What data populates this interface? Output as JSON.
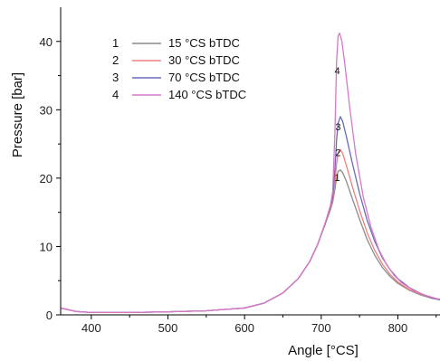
{
  "chart_data": {
    "type": "line",
    "title": "",
    "xlabel": "Angle [°CS]",
    "ylabel": "Pressure [bar]",
    "xlim": [
      360,
      855
    ],
    "ylim": [
      0,
      45
    ],
    "xticks": [
      400,
      500,
      600,
      700,
      800
    ],
    "yticks": [
      0,
      10,
      20,
      30,
      40
    ],
    "grid": false,
    "legend_placement": "top-left",
    "series": [
      {
        "legend_index": "1",
        "name": "15 °CS bTDC",
        "curve_label": "4",
        "color": "#8a8a8a",
        "points": [
          [
            360,
            1.0
          ],
          [
            380,
            0.5
          ],
          [
            400,
            0.35
          ],
          [
            450,
            0.35
          ],
          [
            500,
            0.45
          ],
          [
            550,
            0.6
          ],
          [
            600,
            1.0
          ],
          [
            625,
            1.7
          ],
          [
            650,
            3.2
          ],
          [
            670,
            5.3
          ],
          [
            685,
            7.8
          ],
          [
            695,
            10.2
          ],
          [
            705,
            13.2
          ],
          [
            712,
            15.4
          ],
          [
            715,
            16.5
          ],
          [
            718,
            18.5
          ],
          [
            720,
            20.0
          ],
          [
            722,
            21.0
          ],
          [
            725,
            21.2
          ],
          [
            728,
            20.8
          ],
          [
            733,
            19.5
          ],
          [
            740,
            17.2
          ],
          [
            750,
            14.0
          ],
          [
            760,
            11.0
          ],
          [
            770,
            8.7
          ],
          [
            780,
            6.9
          ],
          [
            790,
            5.6
          ],
          [
            800,
            4.6
          ],
          [
            815,
            3.6
          ],
          [
            830,
            2.9
          ],
          [
            845,
            2.4
          ],
          [
            855,
            2.2
          ]
        ]
      },
      {
        "legend_index": "2",
        "name": "30 °CS bTDC",
        "curve_label": "3",
        "color": "#f08080",
        "points": [
          [
            360,
            1.0
          ],
          [
            380,
            0.5
          ],
          [
            400,
            0.35
          ],
          [
            450,
            0.35
          ],
          [
            500,
            0.45
          ],
          [
            550,
            0.6
          ],
          [
            600,
            1.0
          ],
          [
            625,
            1.7
          ],
          [
            650,
            3.2
          ],
          [
            670,
            5.3
          ],
          [
            685,
            7.8
          ],
          [
            695,
            10.2
          ],
          [
            705,
            13.3
          ],
          [
            712,
            15.6
          ],
          [
            715,
            16.8
          ],
          [
            718,
            19.5
          ],
          [
            720,
            22.0
          ],
          [
            722,
            23.8
          ],
          [
            725,
            24.2
          ],
          [
            728,
            23.6
          ],
          [
            733,
            21.8
          ],
          [
            740,
            19.0
          ],
          [
            750,
            15.3
          ],
          [
            760,
            12.0
          ],
          [
            770,
            9.4
          ],
          [
            780,
            7.4
          ],
          [
            790,
            5.9
          ],
          [
            800,
            4.8
          ],
          [
            815,
            3.7
          ],
          [
            830,
            3.0
          ],
          [
            845,
            2.5
          ],
          [
            855,
            2.2
          ]
        ]
      },
      {
        "legend_index": "3",
        "name": "70 °CS bTDC",
        "curve_label": "2",
        "color": "#6a6ab8",
        "points": [
          [
            360,
            1.0
          ],
          [
            380,
            0.5
          ],
          [
            400,
            0.35
          ],
          [
            450,
            0.35
          ],
          [
            500,
            0.45
          ],
          [
            550,
            0.6
          ],
          [
            600,
            1.0
          ],
          [
            625,
            1.7
          ],
          [
            650,
            3.2
          ],
          [
            670,
            5.3
          ],
          [
            685,
            7.8
          ],
          [
            695,
            10.2
          ],
          [
            705,
            13.3
          ],
          [
            712,
            15.8
          ],
          [
            715,
            17.2
          ],
          [
            718,
            21.5
          ],
          [
            720,
            25.5
          ],
          [
            722,
            28.0
          ],
          [
            725,
            29.0
          ],
          [
            728,
            28.3
          ],
          [
            733,
            26.0
          ],
          [
            740,
            22.5
          ],
          [
            750,
            17.8
          ],
          [
            760,
            13.8
          ],
          [
            770,
            10.7
          ],
          [
            780,
            8.3
          ],
          [
            790,
            6.6
          ],
          [
            800,
            5.3
          ],
          [
            815,
            4.0
          ],
          [
            830,
            3.1
          ],
          [
            845,
            2.5
          ],
          [
            855,
            2.2
          ]
        ]
      },
      {
        "legend_index": "4",
        "name": "140 °CS bTDC",
        "curve_label": "1",
        "color": "#d878c8",
        "points": [
          [
            360,
            1.0
          ],
          [
            380,
            0.5
          ],
          [
            400,
            0.35
          ],
          [
            450,
            0.35
          ],
          [
            500,
            0.45
          ],
          [
            550,
            0.6
          ],
          [
            600,
            1.0
          ],
          [
            625,
            1.7
          ],
          [
            650,
            3.2
          ],
          [
            670,
            5.3
          ],
          [
            685,
            7.8
          ],
          [
            695,
            10.2
          ],
          [
            705,
            13.4
          ],
          [
            712,
            16.0
          ],
          [
            715,
            18.0
          ],
          [
            718,
            27.0
          ],
          [
            720,
            37.0
          ],
          [
            722,
            40.8
          ],
          [
            724,
            41.2
          ],
          [
            727,
            40.0
          ],
          [
            731,
            36.5
          ],
          [
            737,
            30.5
          ],
          [
            745,
            23.5
          ],
          [
            755,
            17.2
          ],
          [
            765,
            12.8
          ],
          [
            775,
            9.6
          ],
          [
            785,
            7.4
          ],
          [
            795,
            5.8
          ],
          [
            805,
            4.7
          ],
          [
            820,
            3.6
          ],
          [
            835,
            2.9
          ],
          [
            850,
            2.4
          ],
          [
            855,
            2.3
          ]
        ]
      }
    ]
  }
}
